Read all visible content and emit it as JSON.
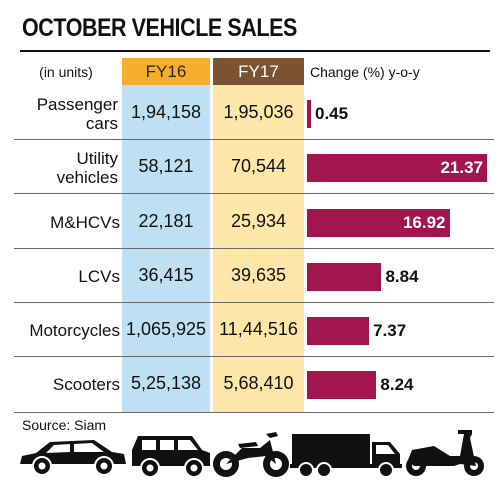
{
  "title": "OCTOBER VEHICLE SALES",
  "units_label": "(in units)",
  "change_label": "Change (%) y-o-y",
  "source": "Source: Siam",
  "colors": {
    "fy16_header": "#f6ac2c",
    "fy17_header": "#7b5232",
    "fy16_column": "#bfe0f2",
    "fy17_column": "#fde6a7",
    "bar": "#a3154f"
  },
  "chart_data": {
    "type": "table",
    "columns": [
      "FY16",
      "FY17",
      "Change (%) y-o-y"
    ],
    "rows": [
      {
        "category": "Passenger cars",
        "fy16": "1,94,158",
        "fy17": "1,95,036",
        "change": 0.45,
        "change_label": "0.45"
      },
      {
        "category": "Utility vehicles",
        "fy16": "58,121",
        "fy17": "70,544",
        "change": 21.37,
        "change_label": "21.37"
      },
      {
        "category": "M&HCVs",
        "fy16": "22,181",
        "fy17": "25,934",
        "change": 16.92,
        "change_label": "16.92"
      },
      {
        "category": "LCVs",
        "fy16": "36,415",
        "fy17": "39,635",
        "change": 8.84,
        "change_label": "8.84"
      },
      {
        "category": "Motorcycles",
        "fy16": "1,065,925",
        "fy17": "11,44,516",
        "change": 7.37,
        "change_label": "7.37"
      },
      {
        "category": "Scooters",
        "fy16": "5,25,138",
        "fy17": "5,68,410",
        "change": 8.24,
        "change_label": "8.24"
      }
    ],
    "vehicle_icons": [
      "car-icon",
      "suv-icon",
      "motorcycle-icon",
      "truck-icon",
      "scooter-icon"
    ]
  }
}
